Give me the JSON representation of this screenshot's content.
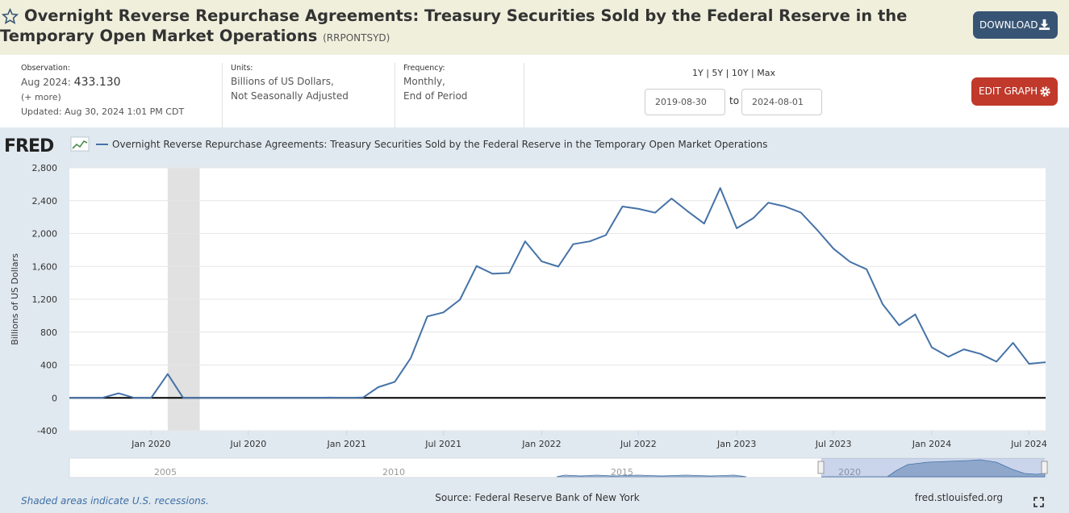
{
  "header": {
    "title": "Overnight Reverse Repurchase Agreements: Treasury Securities Sold by the Federal Reserve in the Temporary Open Market Operations",
    "series_id": "(RRPONTSYD)",
    "download_label": "DOWNLOAD"
  },
  "meta": {
    "observation_label": "Observation:",
    "observation_date": "Aug 2024:",
    "observation_value": "433.130",
    "more_link": "(+ more)",
    "updated": "Updated: Aug 30, 2024 1:01 PM CDT",
    "units_label": "Units:",
    "units_line1": "Billions of US Dollars,",
    "units_line2": "Not Seasonally Adjusted",
    "frequency_label": "Frequency:",
    "frequency_line1": "Monthly,",
    "frequency_line2": "End of Period"
  },
  "controls": {
    "range_links": "1Y | 5Y | 10Y | Max",
    "start_date": "2019-08-30",
    "to_label": "to",
    "end_date": "2024-08-01",
    "edit_graph_label": "EDIT GRAPH"
  },
  "footer": {
    "recession_note": "Shaded areas indicate U.S. recessions.",
    "source": "Source: Federal Reserve Bank of New York",
    "site": "fred.stlouisfed.org"
  },
  "colors": {
    "line": "#4572a7",
    "recession": "#e1e1e1",
    "chart_bg": "#e1e9f0",
    "download_btn": "#385474",
    "edit_btn": "#c0392b"
  },
  "chart_data": {
    "type": "line",
    "legend": "Overnight Reverse Repurchase Agreements: Treasury Securities Sold by the Federal Reserve in the Temporary Open Market Operations",
    "ylabel": "Billions of US Dollars",
    "ylim": [
      -400,
      2800
    ],
    "yticks": [
      -400,
      0,
      400,
      800,
      1200,
      1600,
      2000,
      2400,
      2800
    ],
    "ytick_labels": [
      "-400",
      "0",
      "400",
      "800",
      "1,200",
      "1,600",
      "2,000",
      "2,400",
      "2,800"
    ],
    "xlim": [
      "2019-08-01",
      "2024-08-01"
    ],
    "xticks": [
      {
        "date": "2020-01-01",
        "label": "Jan 2020"
      },
      {
        "date": "2020-07-01",
        "label": "Jul 2020"
      },
      {
        "date": "2021-01-01",
        "label": "Jan 2021"
      },
      {
        "date": "2021-07-01",
        "label": "Jul 2021"
      },
      {
        "date": "2022-01-01",
        "label": "Jan 2022"
      },
      {
        "date": "2022-07-01",
        "label": "Jul 2022"
      },
      {
        "date": "2023-01-01",
        "label": "Jan 2023"
      },
      {
        "date": "2023-07-01",
        "label": "Jul 2023"
      },
      {
        "date": "2024-01-01",
        "label": "Jan 2024"
      },
      {
        "date": "2024-07-01",
        "label": "Jul 2024"
      }
    ],
    "recessions": [
      {
        "start": "2020-02-01",
        "end": "2020-04-01"
      }
    ],
    "grid": true,
    "legend_position": "top-left",
    "x": [
      "2019-08",
      "2019-09",
      "2019-10",
      "2019-11",
      "2019-12",
      "2020-01",
      "2020-02",
      "2020-03",
      "2020-04",
      "2020-05",
      "2020-06",
      "2020-07",
      "2020-08",
      "2020-09",
      "2020-10",
      "2020-11",
      "2020-12",
      "2021-01",
      "2021-02",
      "2021-03",
      "2021-04",
      "2021-05",
      "2021-06",
      "2021-07",
      "2021-08",
      "2021-09",
      "2021-10",
      "2021-11",
      "2021-12",
      "2022-01",
      "2022-02",
      "2022-03",
      "2022-04",
      "2022-05",
      "2022-06",
      "2022-07",
      "2022-08",
      "2022-09",
      "2022-10",
      "2022-11",
      "2022-12",
      "2023-01",
      "2023-02",
      "2023-03",
      "2023-04",
      "2023-05",
      "2023-06",
      "2023-07",
      "2023-08",
      "2023-09",
      "2023-10",
      "2023-11",
      "2023-12",
      "2024-01",
      "2024-02",
      "2024-03",
      "2024-04",
      "2024-05",
      "2024-06",
      "2024-07",
      "2024-08"
    ],
    "series": [
      {
        "values": [
          0,
          0,
          0,
          55,
          0,
          0,
          290,
          0,
          0,
          0,
          0,
          0,
          0,
          0,
          0,
          0,
          3,
          0,
          5,
          130,
          195,
          485,
          991,
          1040,
          1195,
          1604,
          1510,
          1520,
          1905,
          1660,
          1598,
          1870,
          1905,
          1980,
          2329,
          2300,
          2253,
          2426,
          2271,
          2121,
          2554,
          2064,
          2187,
          2375,
          2330,
          2255,
          2040,
          1815,
          1655,
          1565,
          1140,
          883,
          1015,
          615,
          500,
          590,
          535,
          440,
          670,
          415,
          433.13
        ]
      }
    ],
    "navigator_labels": [
      "2005",
      "2010",
      "2015",
      "2020"
    ]
  }
}
